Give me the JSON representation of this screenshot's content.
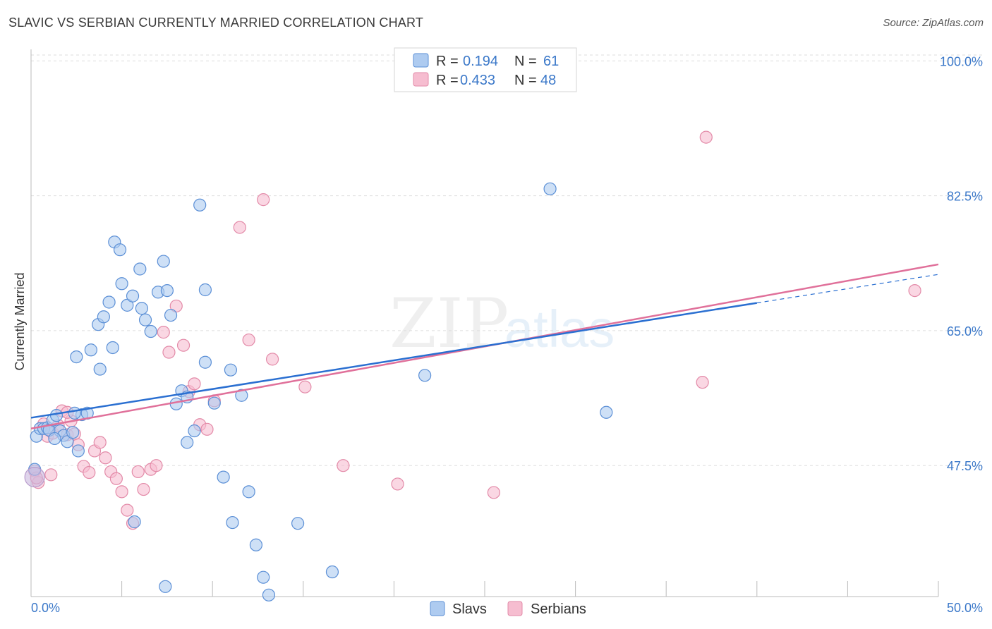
{
  "title": "SLAVIC VS SERBIAN CURRENTLY MARRIED CORRELATION CHART",
  "source": "Source: ZipAtlas.com",
  "watermark": {
    "part1": "ZIP",
    "part2": "atlas"
  },
  "colors": {
    "slavs_fill": "#aecbf0",
    "slavs_stroke": "#5b8fd6",
    "slavs_line": "#2a6fd1",
    "serbians_fill": "#f6bdd0",
    "serbians_stroke": "#e38aa8",
    "serbians_line": "#e0709a",
    "tick_text": "#3b78c9",
    "grid": "#dddddd"
  },
  "legend": {
    "rows": [
      {
        "r_label": "R =",
        "r_value": "0.194",
        "n_label": "N =",
        "n_value": "61",
        "series": "slavs"
      },
      {
        "r_label": "R =",
        "r_value": "0.433",
        "n_label": "N =",
        "n_value": "48",
        "series": "serbians"
      }
    ],
    "bottom": [
      "Slavs",
      "Serbians"
    ]
  },
  "chart_data": {
    "type": "scatter",
    "title": "SLAVIC VS SERBIAN CURRENTLY MARRIED CORRELATION CHART",
    "xlabel": "",
    "ylabel": "Currently Married",
    "xlim": [
      0,
      50
    ],
    "ylim": [
      30.5,
      101.5
    ],
    "x_tick_labels": [
      {
        "value": 0,
        "label": "0.0%"
      },
      {
        "value": 50,
        "label": "50.0%"
      }
    ],
    "y_ticks": [
      {
        "value": 100,
        "label": "100.0%"
      },
      {
        "value": 82.5,
        "label": "82.5%"
      },
      {
        "value": 65,
        "label": "65.0%"
      },
      {
        "value": 47.5,
        "label": "47.5%"
      }
    ],
    "x_minor_ticks": [
      5,
      10,
      15,
      20,
      25,
      30,
      35,
      40,
      45,
      50
    ],
    "series": [
      {
        "name": "Slavs",
        "trend": {
          "x0": 0,
          "y0": 53.7,
          "x1": 40,
          "y1": 68.6,
          "dash_to_x": 50,
          "dash_to_y": 72.3
        },
        "points": [
          [
            0.3,
            51.3
          ],
          [
            0.5,
            52.3
          ],
          [
            0.7,
            52.3
          ],
          [
            0.9,
            52.4
          ],
          [
            1.0,
            52.1
          ],
          [
            1.2,
            53.4
          ],
          [
            1.4,
            54.0
          ],
          [
            1.6,
            52.0
          ],
          [
            1.8,
            51.4
          ],
          [
            2.0,
            50.6
          ],
          [
            2.3,
            51.8
          ],
          [
            1.3,
            51.0
          ],
          [
            2.8,
            54.1
          ],
          [
            3.1,
            54.3
          ],
          [
            3.3,
            62.5
          ],
          [
            3.7,
            65.8
          ],
          [
            4.0,
            66.8
          ],
          [
            4.3,
            68.7
          ],
          [
            4.6,
            76.5
          ],
          [
            4.9,
            75.5
          ],
          [
            5.0,
            71.1
          ],
          [
            5.3,
            68.3
          ],
          [
            5.6,
            69.5
          ],
          [
            6.0,
            73.0
          ],
          [
            6.3,
            66.4
          ],
          [
            6.6,
            64.9
          ],
          [
            7.0,
            70.0
          ],
          [
            7.3,
            74.0
          ],
          [
            7.5,
            70.2
          ],
          [
            7.7,
            67.0
          ],
          [
            8.0,
            55.5
          ],
          [
            8.3,
            57.2
          ],
          [
            8.6,
            56.4
          ],
          [
            9.0,
            52.0
          ],
          [
            9.3,
            81.3
          ],
          [
            9.6,
            70.3
          ],
          [
            10.1,
            55.6
          ],
          [
            10.6,
            46.0
          ],
          [
            11.1,
            40.1
          ],
          [
            11.6,
            56.6
          ],
          [
            12.0,
            44.1
          ],
          [
            12.4,
            37.2
          ],
          [
            12.8,
            33.0
          ],
          [
            13.1,
            30.7
          ],
          [
            5.7,
            40.2
          ],
          [
            7.4,
            31.8
          ],
          [
            16.6,
            33.7
          ],
          [
            14.7,
            40.0
          ],
          [
            21.7,
            59.2
          ],
          [
            28.6,
            83.4
          ],
          [
            31.7,
            54.4
          ],
          [
            2.4,
            54.3
          ],
          [
            3.8,
            60.0
          ],
          [
            2.5,
            61.6
          ],
          [
            4.5,
            62.8
          ],
          [
            6.1,
            67.9
          ],
          [
            8.6,
            50.5
          ],
          [
            9.6,
            60.9
          ],
          [
            11.0,
            59.9
          ],
          [
            2.6,
            49.4
          ],
          [
            0.2,
            47.0
          ]
        ]
      },
      {
        "name": "Serbians",
        "trend": {
          "x0": 0,
          "y0": 52.3,
          "x1": 50,
          "y1": 73.6
        },
        "points": [
          [
            0.2,
            46.8
          ],
          [
            0.4,
            45.3
          ],
          [
            0.7,
            52.9
          ],
          [
            0.9,
            51.3
          ],
          [
            1.2,
            51.7
          ],
          [
            1.5,
            52.7
          ],
          [
            1.7,
            54.6
          ],
          [
            2.0,
            51.5
          ],
          [
            2.2,
            53.3
          ],
          [
            2.4,
            51.6
          ],
          [
            2.6,
            50.2
          ],
          [
            2.9,
            47.4
          ],
          [
            3.2,
            46.6
          ],
          [
            3.5,
            49.4
          ],
          [
            3.8,
            50.5
          ],
          [
            4.1,
            48.5
          ],
          [
            4.4,
            46.7
          ],
          [
            4.7,
            45.8
          ],
          [
            5.0,
            44.1
          ],
          [
            5.3,
            41.7
          ],
          [
            5.6,
            40.0
          ],
          [
            5.9,
            46.7
          ],
          [
            6.2,
            44.4
          ],
          [
            6.6,
            47.0
          ],
          [
            6.9,
            47.5
          ],
          [
            7.3,
            64.8
          ],
          [
            7.6,
            62.2
          ],
          [
            8.0,
            68.2
          ],
          [
            8.4,
            63.1
          ],
          [
            8.7,
            57.1
          ],
          [
            9.0,
            58.1
          ],
          [
            9.3,
            52.8
          ],
          [
            9.7,
            52.2
          ],
          [
            10.1,
            55.9
          ],
          [
            11.5,
            78.4
          ],
          [
            12.0,
            63.8
          ],
          [
            12.8,
            82.0
          ],
          [
            13.3,
            61.3
          ],
          [
            15.1,
            57.7
          ],
          [
            17.2,
            47.5
          ],
          [
            20.2,
            45.1
          ],
          [
            25.5,
            44.0
          ],
          [
            37.0,
            58.3
          ],
          [
            37.2,
            90.1
          ],
          [
            48.7,
            70.2
          ],
          [
            1.1,
            46.3
          ],
          [
            2.0,
            54.4
          ],
          [
            0.3,
            45.9
          ]
        ]
      }
    ]
  }
}
